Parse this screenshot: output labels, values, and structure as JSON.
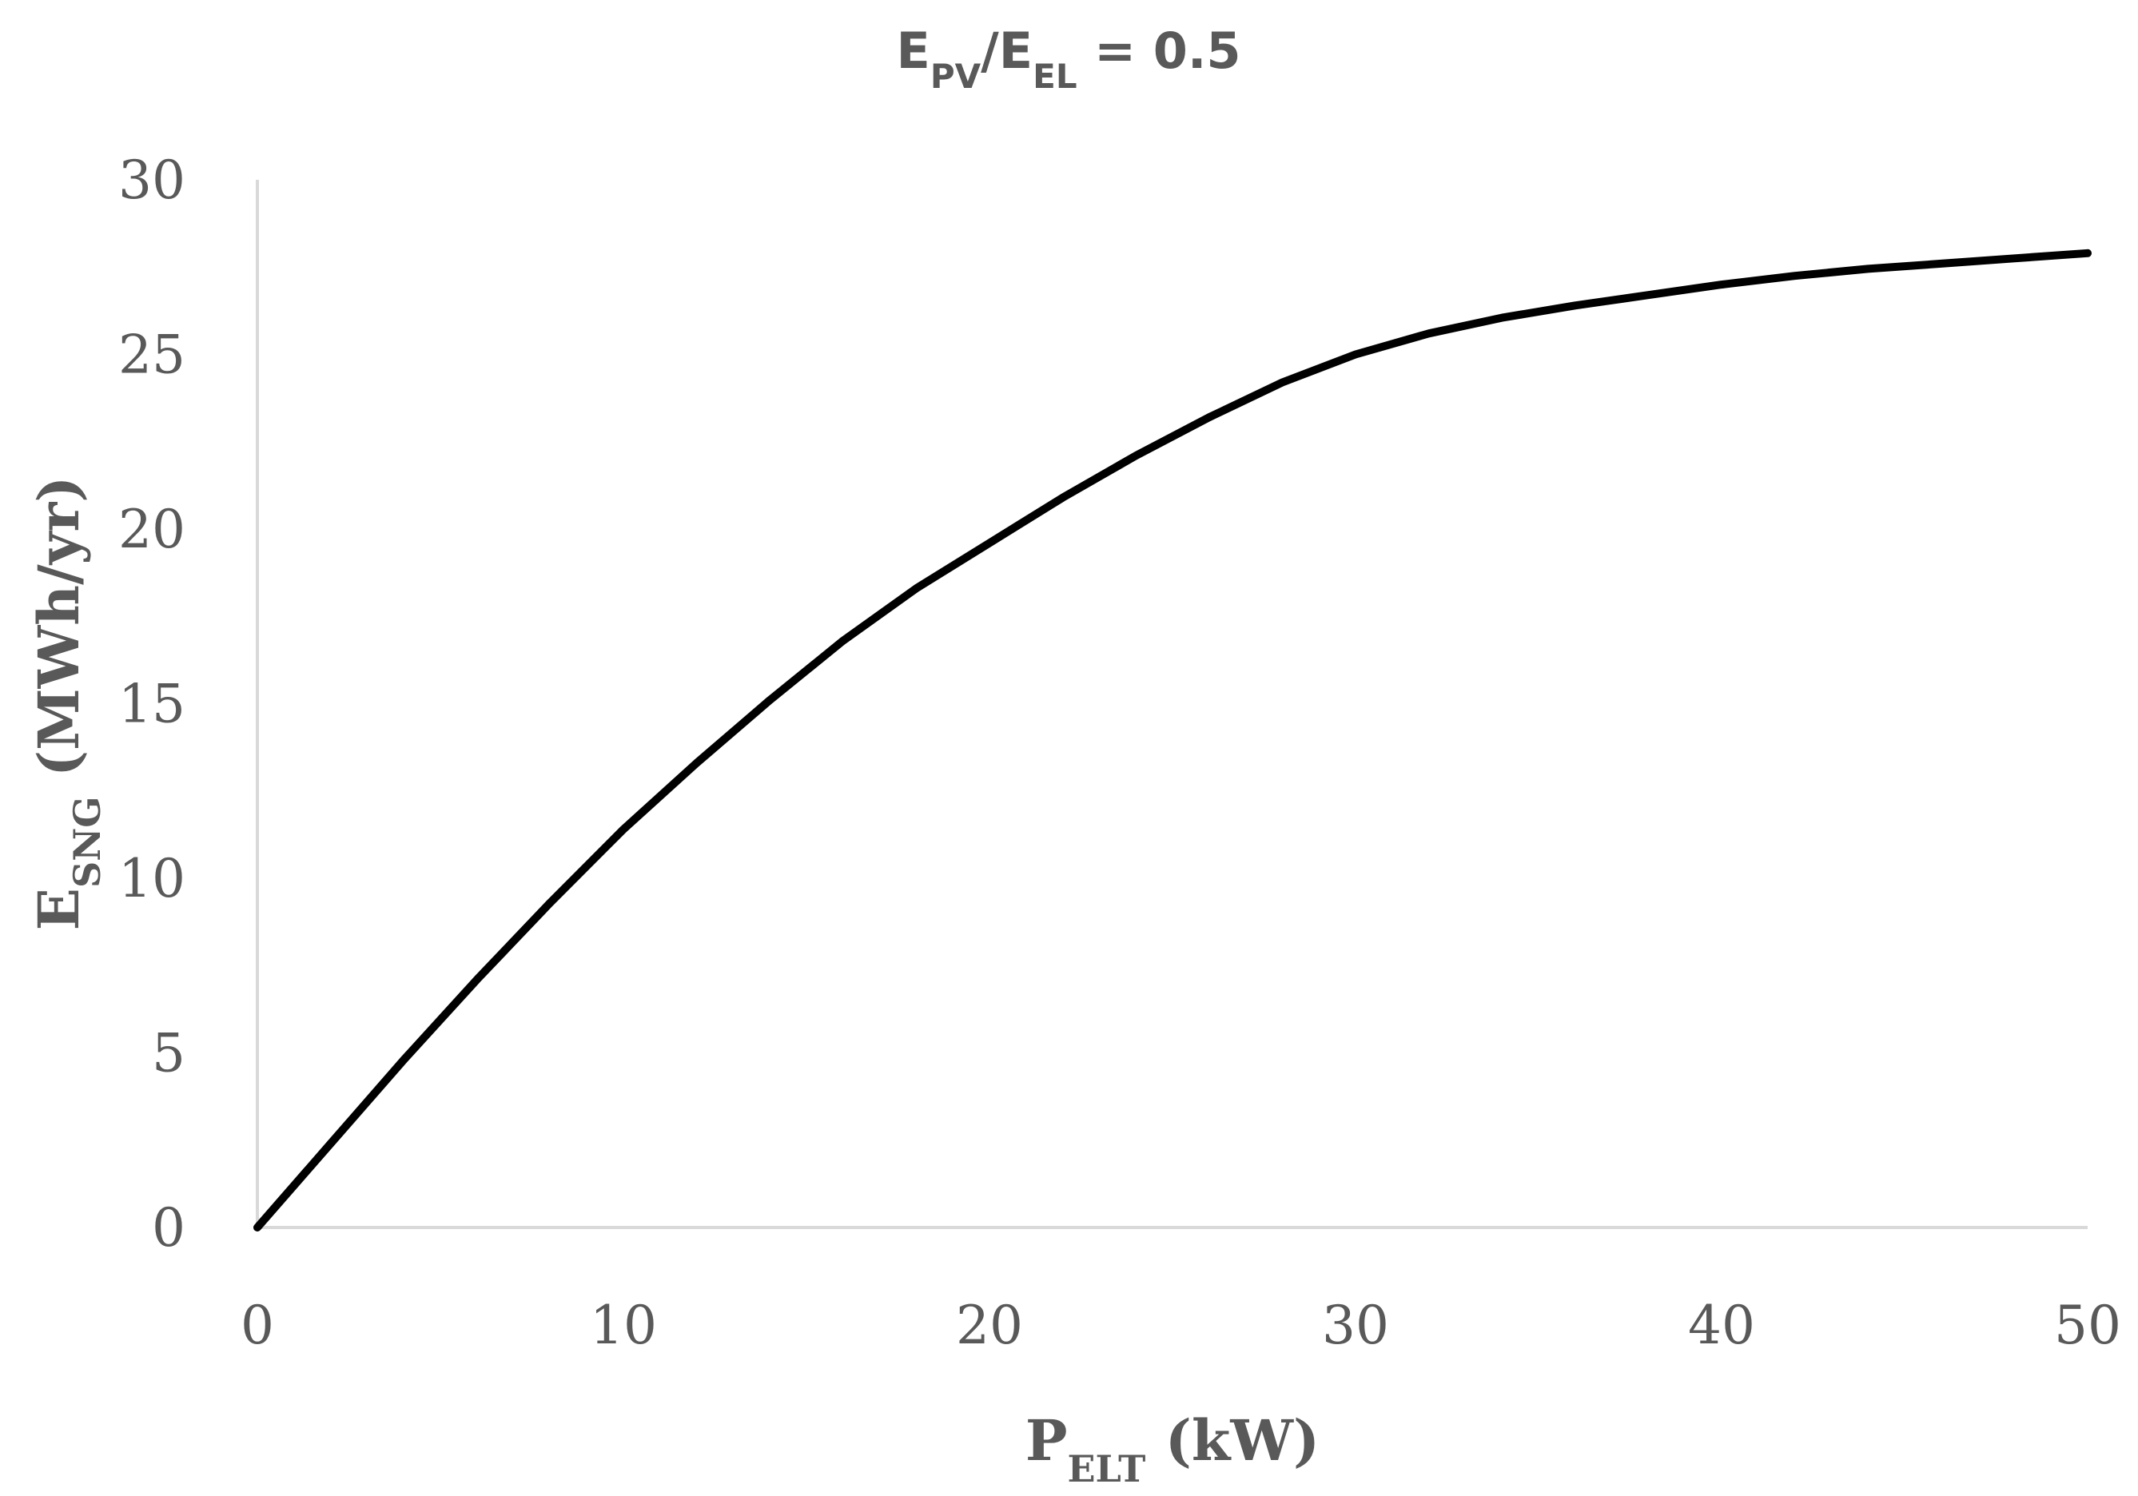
{
  "chart_data": {
    "type": "line",
    "title": {
      "parts": [
        {
          "text": "E",
          "sub": false
        },
        {
          "text": "PV",
          "sub": true
        },
        {
          "text": "/E",
          "sub": false
        },
        {
          "text": "EL",
          "sub": true
        },
        {
          "text": " = 0.5",
          "sub": false
        }
      ]
    },
    "xlabel": {
      "parts": [
        {
          "text": "P",
          "sub": false
        },
        {
          "text": "ELT",
          "sub": true
        },
        {
          "text": " (kW)",
          "sub": false
        }
      ]
    },
    "ylabel": {
      "parts": [
        {
          "text": "E",
          "sub": false
        },
        {
          "text": "SNG",
          "sub": true
        },
        {
          "text": " (MWh/yr)",
          "sub": false
        }
      ]
    },
    "xlim": [
      0,
      50
    ],
    "ylim": [
      0,
      30
    ],
    "xticks": [
      0,
      10,
      20,
      30,
      40,
      50
    ],
    "yticks": [
      0,
      5,
      10,
      15,
      20,
      25,
      30
    ],
    "grid": false,
    "series": [
      {
        "name": "E_SNG",
        "color": "#000000",
        "x": [
          0,
          2,
          4,
          6,
          8,
          10,
          12,
          14,
          16,
          18,
          20,
          22,
          24,
          26,
          28,
          30,
          32,
          34,
          36,
          38,
          40,
          42,
          44,
          46,
          48,
          50
        ],
        "y": [
          0,
          2.4,
          4.8,
          7.1,
          9.3,
          11.4,
          13.3,
          15.1,
          16.8,
          18.3,
          19.6,
          20.9,
          22.1,
          23.2,
          24.2,
          25.0,
          25.6,
          26.05,
          26.4,
          26.7,
          27.0,
          27.25,
          27.45,
          27.6,
          27.75,
          27.9
        ]
      }
    ]
  }
}
